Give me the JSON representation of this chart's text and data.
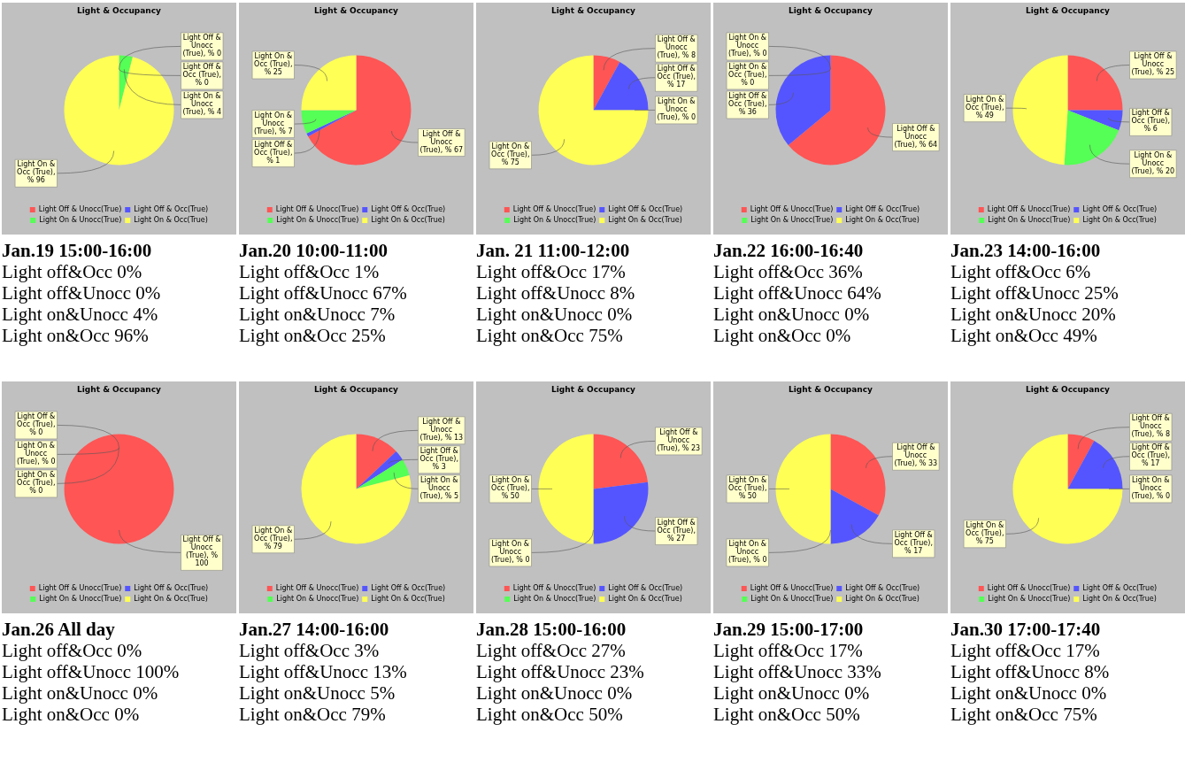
{
  "chart_data": [
    {
      "type": "pie",
      "title": "Light & Occupancy",
      "subtitle": "Jan.19 15:00-16:00",
      "categories": [
        "Light Off & Unocc(True)",
        "Light Off & Occ(True)",
        "Light On & Unocc(True)",
        "Light On & Occ(True)"
      ],
      "values": [
        0,
        0,
        4,
        96
      ],
      "colors": [
        "#ff5555",
        "#5555ff",
        "#55ff55",
        "#ffff55"
      ],
      "value_labels": [
        "Light Off & Unocc (True), % 0",
        "Light Off & Occ (True), % 0",
        "Light On & Unocc (True), % 4",
        "Light On & Occ (True), % 96"
      ],
      "legend": "bottom",
      "annotations": [
        "Light off&Occ 0%",
        "Light off&Unocc 0%",
        "Light on&Unocc 4%",
        "Light on&Occ 96%"
      ]
    },
    {
      "type": "pie",
      "title": "Light & Occupancy",
      "subtitle": "Jan.20 10:00-11:00",
      "categories": [
        "Light Off & Unocc(True)",
        "Light Off & Occ(True)",
        "Light On & Unocc(True)",
        "Light On & Occ(True)"
      ],
      "values": [
        67,
        1,
        7,
        25
      ],
      "colors": [
        "#ff5555",
        "#5555ff",
        "#55ff55",
        "#ffff55"
      ],
      "value_labels": [
        "Light Off & Unocc (True), % 67",
        "Light Off & Occ (True), % 1",
        "Light On & Unocc (True), % 7",
        "Light On & Occ (True), % 25"
      ],
      "legend": "bottom",
      "annotations": [
        "Light off&Occ 1%",
        "Light off&Unocc 67%",
        "Light on&Unocc 7%",
        "Light on&Occ 25%"
      ]
    },
    {
      "type": "pie",
      "title": "Light & Occupancy",
      "subtitle": "Jan. 21 11:00-12:00",
      "categories": [
        "Light Off & Unocc(True)",
        "Light Off & Occ(True)",
        "Light On & Unocc(True)",
        "Light On & Occ(True)"
      ],
      "values": [
        8,
        17,
        0,
        75
      ],
      "colors": [
        "#ff5555",
        "#5555ff",
        "#55ff55",
        "#ffff55"
      ],
      "value_labels": [
        "Light Off & Unocc (True), % 8",
        "Light Off & Occ (True), % 17",
        "Light On & Unocc (True), % 0",
        "Light On & Occ (True), % 75"
      ],
      "legend": "bottom",
      "annotations": [
        "Light off&Occ 17%",
        "Light off&Unocc 8%",
        "Light on&Unocc 0%",
        "Light on&Occ 75%"
      ]
    },
    {
      "type": "pie",
      "title": "Light & Occupancy",
      "subtitle": "Jan.22 16:00-16:40",
      "categories": [
        "Light Off & Unocc(True)",
        "Light Off & Occ(True)",
        "Light On & Unocc(True)",
        "Light On & Occ(True)"
      ],
      "values": [
        64,
        36,
        0,
        0
      ],
      "colors": [
        "#ff5555",
        "#5555ff",
        "#55ff55",
        "#ffff55"
      ],
      "value_labels": [
        "Light Off & Unocc (True), % 64",
        "Light Off & Occ (True), % 36",
        "Light On & Unocc (True), % 0",
        "Light On & Occ (True), % 0"
      ],
      "legend": "bottom",
      "annotations": [
        "Light off&Occ 36%",
        "Light off&Unocc 64%",
        "Light on&Unocc 0%",
        "Light on&Occ 0%"
      ]
    },
    {
      "type": "pie",
      "title": "Light & Occupancy",
      "subtitle": "Jan.23 14:00-16:00",
      "categories": [
        "Light Off & Unocc(True)",
        "Light Off & Occ(True)",
        "Light On & Unocc(True)",
        "Light On & Occ(True)"
      ],
      "values": [
        25,
        6,
        20,
        49
      ],
      "colors": [
        "#ff5555",
        "#5555ff",
        "#55ff55",
        "#ffff55"
      ],
      "value_labels": [
        "Light Off & Unocc (True), % 25",
        "Light Off & Occ (True), % 6",
        "Light On & Unocc (True), % 20",
        "Light On & Occ (True), % 49"
      ],
      "legend": "bottom",
      "annotations": [
        "Light off&Occ 6%",
        "Light off&Unocc 25%",
        "Light on&Unocc 20%",
        "Light on&Occ 49%"
      ]
    },
    {
      "type": "pie",
      "title": "Light & Occupancy",
      "subtitle": "Jan.26 All day",
      "categories": [
        "Light Off & Unocc(True)",
        "Light Off & Occ(True)",
        "Light On & Unocc(True)",
        "Light On & Occ(True)"
      ],
      "values": [
        100,
        0,
        0,
        0
      ],
      "colors": [
        "#ff5555",
        "#5555ff",
        "#55ff55",
        "#ffff55"
      ],
      "value_labels": [
        "Light Off & Unocc (True), % 100",
        "Light Off & Occ (True), % 0",
        "Light On & Unocc (True), % 0",
        "Light On & Occ (True), % 0"
      ],
      "legend": "bottom",
      "annotations": [
        "Light off&Occ 0%",
        "Light off&Unocc 100%",
        "Light on&Unocc 0%",
        "Light on&Occ 0%"
      ]
    },
    {
      "type": "pie",
      "title": "Light & Occupancy",
      "subtitle": "Jan.27 14:00-16:00",
      "categories": [
        "Light Off & Unocc(True)",
        "Light Off & Occ(True)",
        "Light On & Unocc(True)",
        "Light On & Occ(True)"
      ],
      "values": [
        13,
        3,
        5,
        79
      ],
      "colors": [
        "#ff5555",
        "#5555ff",
        "#55ff55",
        "#ffff55"
      ],
      "value_labels": [
        "Light Off & Unocc (True), % 13",
        "Light Off & Occ (True), % 3",
        "Light On & Unocc (True), % 5",
        "Light On & Occ (True), % 79"
      ],
      "legend": "bottom",
      "annotations": [
        "Light off&Occ 3%",
        "Light off&Unocc 13%",
        "Light on&Unocc 5%",
        "Light on&Occ 79%"
      ]
    },
    {
      "type": "pie",
      "title": "Light & Occupancy",
      "subtitle": "Jan.28 15:00-16:00",
      "categories": [
        "Light Off & Unocc(True)",
        "Light Off & Occ(True)",
        "Light On & Unocc(True)",
        "Light On & Occ(True)"
      ],
      "values": [
        23,
        27,
        0,
        50
      ],
      "colors": [
        "#ff5555",
        "#5555ff",
        "#55ff55",
        "#ffff55"
      ],
      "value_labels": [
        "Light Off & Unocc (True), % 23",
        "Light Off & Occ (True), % 27",
        "Light On & Unocc (True), % 0",
        "Light On & Occ (True), % 50"
      ],
      "legend": "bottom",
      "annotations": [
        "Light off&Occ 27%",
        "Light off&Unocc 23%",
        "Light on&Unocc 0%",
        "Light on&Occ 50%"
      ]
    },
    {
      "type": "pie",
      "title": "Light & Occupancy",
      "subtitle": "Jan.29 15:00-17:00",
      "categories": [
        "Light Off & Unocc(True)",
        "Light Off & Occ(True)",
        "Light On & Unocc(True)",
        "Light On & Occ(True)"
      ],
      "values": [
        33,
        17,
        0,
        50
      ],
      "colors": [
        "#ff5555",
        "#5555ff",
        "#55ff55",
        "#ffff55"
      ],
      "value_labels": [
        "Light Off & Unocc (True), % 33",
        "Light Off & Occ (True), % 17",
        "Light On & Unocc (True), % 0",
        "Light On & Occ (True), % 50"
      ],
      "legend": "bottom",
      "annotations": [
        "Light off&Occ 17%",
        "Light off&Unocc 33%",
        "Light on&Unocc 0%",
        "Light on&Occ 50%"
      ]
    },
    {
      "type": "pie",
      "title": "Light & Occupancy",
      "subtitle": "Jan.30 17:00-17:40",
      "categories": [
        "Light Off & Unocc(True)",
        "Light Off & Occ(True)",
        "Light On & Unocc(True)",
        "Light On & Occ(True)"
      ],
      "values": [
        8,
        17,
        0,
        75
      ],
      "colors": [
        "#ff5555",
        "#5555ff",
        "#55ff55",
        "#ffff55"
      ],
      "value_labels": [
        "Light Off & Unocc (True), % 8",
        "Light Off & Occ (True), % 17",
        "Light On & Unocc (True), % 0",
        "Light On & Occ (True), % 75"
      ],
      "legend": "bottom",
      "annotations": [
        "Light off&Occ 17%",
        "Light off&Unocc 8%",
        "Light on&Unocc 0%",
        "Light on&Occ 75%"
      ]
    }
  ]
}
